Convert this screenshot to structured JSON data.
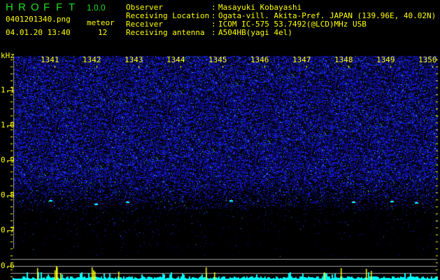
{
  "header": {
    "app_title_letters": [
      "H",
      "R",
      "O",
      "F",
      "F",
      "T"
    ],
    "version": "1.0.0",
    "filename": "0401201340.png",
    "datetime": "04.01.20 13:40",
    "meteor_label": "meteor",
    "meteor_count": "12"
  },
  "info": [
    {
      "label": "Observer",
      "sep": ":",
      "value": "Masayuki Kobayashi"
    },
    {
      "label": "Receiving Location",
      "sep": ":",
      "value": "Ogata-vill. Akita-Pref. JAPAN (139.96E, 40.02N)"
    },
    {
      "label": "Receiver",
      "sep": ":",
      "value": "ICOM IC-575 53.7492(@LCD)MHz USB"
    },
    {
      "label": "Receiving antenna",
      "sep": ":",
      "value": "A504HB(yagi 4el)"
    }
  ],
  "spectrogram": {
    "y_unit": "kHz",
    "y_ticks": [
      "1.1",
      "1.0",
      "0.9",
      "0.8",
      "0.7",
      "0.6"
    ],
    "x_ticks": [
      "1341",
      "1342",
      "1343",
      "1344",
      "1345",
      "1346",
      "1347",
      "1348",
      "1349",
      "1350"
    ],
    "colors": {
      "text": "#ffff00",
      "noise": "#2020ff",
      "signal": "#00ffff",
      "title": "#22dd22",
      "grid": "#a0a0a0"
    }
  }
}
